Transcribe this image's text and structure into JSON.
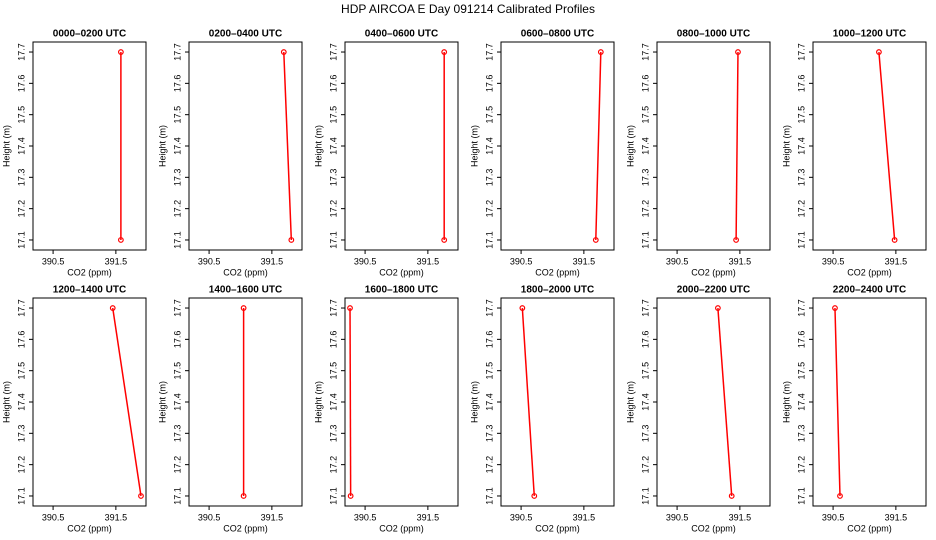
{
  "title": "HDP AIRCOA E  Day 091214  Calibrated Profiles",
  "chart_data": [
    {
      "type": "line",
      "title": "0000–0200 UTC",
      "x": [
        391.58,
        391.58
      ],
      "values": [
        17.7,
        17.1
      ],
      "color": "#ff0000",
      "xlabel": "CO2 (ppm)",
      "ylabel": "Height (m)",
      "xlim": [
        390.18,
        391.98
      ],
      "ylim": [
        17.068,
        17.732
      ],
      "xticks": [
        390.5,
        391.5
      ],
      "yticks": [
        17.1,
        17.2,
        17.3,
        17.4,
        17.5,
        17.6,
        17.7
      ]
    },
    {
      "type": "line",
      "title": "0200–0400 UTC",
      "x": [
        391.69,
        391.81
      ],
      "values": [
        17.7,
        17.1
      ],
      "color": "#ff0000",
      "xlabel": "CO2 (ppm)",
      "ylabel": "Height (m)",
      "xlim": [
        390.18,
        391.98
      ],
      "ylim": [
        17.068,
        17.732
      ],
      "xticks": [
        390.5,
        391.5
      ],
      "yticks": [
        17.1,
        17.2,
        17.3,
        17.4,
        17.5,
        17.6,
        17.7
      ]
    },
    {
      "type": "line",
      "title": "0400–0600 UTC",
      "x": [
        391.76,
        391.76
      ],
      "values": [
        17.7,
        17.1
      ],
      "color": "#ff0000",
      "xlabel": "CO2 (ppm)",
      "ylabel": "Height (m)",
      "xlim": [
        390.18,
        391.98
      ],
      "ylim": [
        17.068,
        17.732
      ],
      "xticks": [
        390.5,
        391.5
      ],
      "yticks": [
        17.1,
        17.2,
        17.3,
        17.4,
        17.5,
        17.6,
        17.7
      ]
    },
    {
      "type": "line",
      "title": "0600–0800 UTC",
      "x": [
        391.77,
        391.69
      ],
      "values": [
        17.7,
        17.1
      ],
      "color": "#ff0000",
      "xlabel": "CO2 (ppm)",
      "ylabel": "Height (m)",
      "xlim": [
        390.18,
        391.98
      ],
      "ylim": [
        17.068,
        17.732
      ],
      "xticks": [
        390.5,
        391.5
      ],
      "yticks": [
        17.1,
        17.2,
        17.3,
        17.4,
        17.5,
        17.6,
        17.7
      ]
    },
    {
      "type": "line",
      "title": "0800–1000 UTC",
      "x": [
        391.47,
        391.44
      ],
      "values": [
        17.7,
        17.1
      ],
      "color": "#ff0000",
      "xlabel": "CO2 (ppm)",
      "ylabel": "Height (m)",
      "xlim": [
        390.18,
        391.98
      ],
      "ylim": [
        17.068,
        17.732
      ],
      "xticks": [
        390.5,
        391.5
      ],
      "yticks": [
        17.1,
        17.2,
        17.3,
        17.4,
        17.5,
        17.6,
        17.7
      ]
    },
    {
      "type": "line",
      "title": "1000–1200 UTC",
      "x": [
        391.23,
        391.48
      ],
      "values": [
        17.7,
        17.1
      ],
      "color": "#ff0000",
      "xlabel": "CO2 (ppm)",
      "ylabel": "Height (m)",
      "xlim": [
        390.18,
        391.98
      ],
      "ylim": [
        17.068,
        17.732
      ],
      "xticks": [
        390.5,
        391.5
      ],
      "yticks": [
        17.1,
        17.2,
        17.3,
        17.4,
        17.5,
        17.6,
        17.7
      ]
    },
    {
      "type": "line",
      "title": "1200–1400 UTC",
      "x": [
        391.45,
        391.9
      ],
      "values": [
        17.7,
        17.1
      ],
      "color": "#ff0000",
      "xlabel": "CO2 (ppm)",
      "ylabel": "Height (m)",
      "xlim": [
        390.18,
        391.98
      ],
      "ylim": [
        17.068,
        17.732
      ],
      "xticks": [
        390.5,
        391.5
      ],
      "yticks": [
        17.1,
        17.2,
        17.3,
        17.4,
        17.5,
        17.6,
        17.7
      ]
    },
    {
      "type": "line",
      "title": "1400–1600 UTC",
      "x": [
        391.05,
        391.05
      ],
      "values": [
        17.7,
        17.1
      ],
      "color": "#ff0000",
      "xlabel": "CO2 (ppm)",
      "ylabel": "Height (m)",
      "xlim": [
        390.18,
        391.98
      ],
      "ylim": [
        17.068,
        17.732
      ],
      "xticks": [
        390.5,
        391.5
      ],
      "yticks": [
        17.1,
        17.2,
        17.3,
        17.4,
        17.5,
        17.6,
        17.7
      ]
    },
    {
      "type": "line",
      "title": "1600–1800 UTC",
      "x": [
        390.26,
        390.27
      ],
      "values": [
        17.7,
        17.1
      ],
      "color": "#ff0000",
      "xlabel": "CO2 (ppm)",
      "ylabel": "Height (m)",
      "xlim": [
        390.18,
        391.98
      ],
      "ylim": [
        17.068,
        17.732
      ],
      "xticks": [
        390.5,
        391.5
      ],
      "yticks": [
        17.1,
        17.2,
        17.3,
        17.4,
        17.5,
        17.6,
        17.7
      ]
    },
    {
      "type": "line",
      "title": "1800–2000 UTC",
      "x": [
        390.52,
        390.71
      ],
      "values": [
        17.7,
        17.1
      ],
      "color": "#ff0000",
      "xlabel": "CO2 (ppm)",
      "ylabel": "Height (m)",
      "xlim": [
        390.18,
        391.98
      ],
      "ylim": [
        17.068,
        17.732
      ],
      "xticks": [
        390.5,
        391.5
      ],
      "yticks": [
        17.1,
        17.2,
        17.3,
        17.4,
        17.5,
        17.6,
        17.7
      ]
    },
    {
      "type": "line",
      "title": "2000–2200 UTC",
      "x": [
        391.15,
        391.37
      ],
      "values": [
        17.7,
        17.1
      ],
      "color": "#ff0000",
      "xlabel": "CO2 (ppm)",
      "ylabel": "Height (m)",
      "xlim": [
        390.18,
        391.98
      ],
      "ylim": [
        17.068,
        17.732
      ],
      "xticks": [
        390.5,
        391.5
      ],
      "yticks": [
        17.1,
        17.2,
        17.3,
        17.4,
        17.5,
        17.6,
        17.7
      ]
    },
    {
      "type": "line",
      "title": "2200–2400 UTC",
      "x": [
        390.53,
        390.61
      ],
      "values": [
        17.7,
        17.1
      ],
      "color": "#ff0000",
      "xlabel": "CO2 (ppm)",
      "ylabel": "Height (m)",
      "xlim": [
        390.18,
        391.98
      ],
      "ylim": [
        17.068,
        17.732
      ],
      "xticks": [
        390.5,
        391.5
      ],
      "yticks": [
        17.1,
        17.2,
        17.3,
        17.4,
        17.5,
        17.6,
        17.7
      ]
    }
  ]
}
